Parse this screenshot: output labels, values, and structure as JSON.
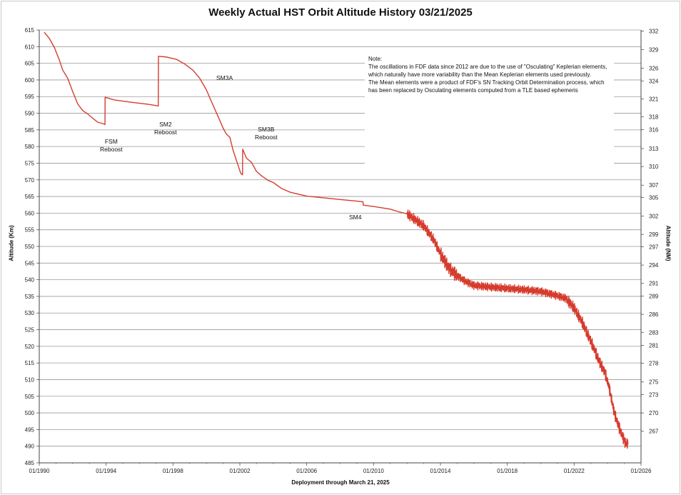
{
  "chart_data": {
    "type": "line",
    "title": "Weekly Actual HST Orbit Altitude History 03/21/2025",
    "xlabel": "Deployment through March 21, 2025",
    "ylabel": "Altitude (Km)",
    "ylabel_right": "Altitude (NM)",
    "xlim": [
      1990,
      2026
    ],
    "ylim": [
      485,
      615
    ],
    "grid": true,
    "x_ticks": [
      "01/1990",
      "01/1994",
      "01/1998",
      "01/2002",
      "01/2006",
      "01/2010",
      "01/2014",
      "01/2018",
      "01/2022",
      "01/2026"
    ],
    "y_ticks": [
      485,
      490,
      495,
      500,
      505,
      510,
      515,
      520,
      525,
      530,
      535,
      540,
      545,
      550,
      555,
      560,
      565,
      570,
      575,
      580,
      585,
      590,
      595,
      600,
      605,
      610,
      615
    ],
    "y_right_ticks": [
      {
        "label": "267",
        "km": 494.5
      },
      {
        "label": "270",
        "km": 500.0
      },
      {
        "label": "273",
        "km": 505.5
      },
      {
        "label": "275",
        "km": 509.3
      },
      {
        "label": "278",
        "km": 514.9
      },
      {
        "label": "281",
        "km": 520.3
      },
      {
        "label": "283",
        "km": 524.2
      },
      {
        "label": "286",
        "km": 529.6
      },
      {
        "label": "289",
        "km": 535.1
      },
      {
        "label": "291",
        "km": 538.9
      },
      {
        "label": "294",
        "km": 544.4
      },
      {
        "label": "297",
        "km": 549.9
      },
      {
        "label": "299",
        "km": 553.6
      },
      {
        "label": "302",
        "km": 559.1
      },
      {
        "label": "305",
        "km": 564.7
      },
      {
        "label": "307",
        "km": 568.4
      },
      {
        "label": "310",
        "km": 574.0
      },
      {
        "label": "313",
        "km": 579.4
      },
      {
        "label": "316",
        "km": 585.1
      },
      {
        "label": "318",
        "km": 588.9
      },
      {
        "label": "321",
        "km": 594.3
      },
      {
        "label": "324",
        "km": 599.7
      },
      {
        "label": "326",
        "km": 603.5
      },
      {
        "label": "329",
        "km": 609.1
      },
      {
        "label": "332",
        "km": 614.7
      }
    ],
    "series": [
      {
        "name": "HST altitude",
        "color": "#d63c2e",
        "points": [
          [
            1990.3,
            614.3
          ],
          [
            1990.6,
            612.5
          ],
          [
            1990.9,
            609.8
          ],
          [
            1991.2,
            606.0
          ],
          [
            1991.4,
            603.0
          ],
          [
            1991.7,
            600.5
          ],
          [
            1992.0,
            596.5
          ],
          [
            1992.3,
            592.8
          ],
          [
            1992.6,
            590.8
          ],
          [
            1992.9,
            589.8
          ],
          [
            1993.2,
            588.5
          ],
          [
            1993.5,
            587.3
          ],
          [
            1993.8,
            586.9
          ],
          [
            1993.93,
            586.6
          ],
          [
            1993.94,
            594.8
          ],
          [
            1994.5,
            594.0
          ],
          [
            1995.5,
            593.3
          ],
          [
            1996.5,
            592.7
          ],
          [
            1997.12,
            592.2
          ],
          [
            1997.13,
            607.1
          ],
          [
            1997.6,
            606.9
          ],
          [
            1998.2,
            606.2
          ],
          [
            1998.7,
            604.8
          ],
          [
            1999.2,
            602.9
          ],
          [
            1999.6,
            600.5
          ],
          [
            2000.0,
            597.0
          ],
          [
            2000.3,
            593.5
          ],
          [
            2000.7,
            589.0
          ],
          [
            2001.0,
            585.5
          ],
          [
            2001.2,
            583.7
          ],
          [
            2001.4,
            582.8
          ],
          [
            2001.6,
            578.8
          ],
          [
            2001.85,
            575.0
          ],
          [
            2002.05,
            572.0
          ],
          [
            2002.16,
            571.5
          ],
          [
            2002.17,
            579.2
          ],
          [
            2002.4,
            576.5
          ],
          [
            2002.7,
            575.2
          ],
          [
            2003.0,
            572.5
          ],
          [
            2003.3,
            571.2
          ],
          [
            2003.7,
            569.8
          ],
          [
            2004.0,
            569.2
          ],
          [
            2004.5,
            567.4
          ],
          [
            2005.0,
            566.3
          ],
          [
            2006.0,
            565.1
          ],
          [
            2007.0,
            564.6
          ],
          [
            2008.0,
            564.1
          ],
          [
            2009.0,
            563.6
          ],
          [
            2009.37,
            563.4
          ],
          [
            2009.38,
            562.4
          ],
          [
            2010.0,
            562.0
          ],
          [
            2011.0,
            561.2
          ],
          [
            2011.5,
            560.4
          ],
          [
            2012.0,
            559.8
          ],
          [
            2013.0,
            556.2
          ],
          [
            2013.6,
            552.0
          ],
          [
            2014.0,
            547.8
          ],
          [
            2014.5,
            543.5
          ],
          [
            2015.0,
            541.2
          ],
          [
            2015.5,
            539.5
          ],
          [
            2016.0,
            538.3
          ],
          [
            2017.0,
            537.8
          ],
          [
            2018.0,
            537.4
          ],
          [
            2019.0,
            537.0
          ],
          [
            2020.0,
            536.5
          ],
          [
            2021.0,
            535.2
          ],
          [
            2021.5,
            534.4
          ],
          [
            2022.0,
            531.5
          ],
          [
            2022.5,
            527.0
          ],
          [
            2023.0,
            521.5
          ],
          [
            2023.5,
            515.5
          ],
          [
            2023.85,
            512.0
          ],
          [
            2024.1,
            507.5
          ],
          [
            2024.4,
            500.0
          ],
          [
            2024.7,
            495.5
          ],
          [
            2025.05,
            491.0
          ],
          [
            2025.22,
            490.8
          ]
        ]
      }
    ],
    "annotations": [
      {
        "lines": [
          "FSM",
          "Reboost"
        ]
      },
      {
        "lines": [
          "SM2",
          "Reboost"
        ]
      },
      {
        "lines": [
          "SM3A"
        ]
      },
      {
        "lines": [
          "SM3B",
          "Reboost"
        ]
      },
      {
        "lines": [
          "SM4"
        ]
      }
    ],
    "note": [
      "Note:",
      "The oscillations in FDF data since 2012 are due to the use of \"Osculating\" Keplerian elements, which naturally have more variability than the Mean Keplerian elements used previously.",
      "The Mean elements were a product of FDF's SN Tracking Orbit Determination process, which has been replaced by Osculating elements computed from a TLE based ephemeris"
    ]
  }
}
